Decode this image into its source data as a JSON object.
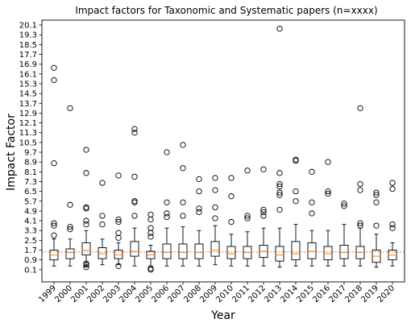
{
  "chart_data": {
    "type": "box",
    "title": "Impact factors for Taxonomic and Systematic papers (n=xxxx)",
    "xlabel": "Year",
    "ylabel": "Impact Factor",
    "ylim": [
      -0.9,
      20.5
    ],
    "yticks": [
      0.1,
      0.9,
      1.7,
      2.5,
      3.3,
      4.1,
      4.9,
      5.7,
      6.5,
      7.3,
      8.1,
      8.9,
      9.7,
      10.5,
      11.3,
      12.1,
      12.9,
      13.7,
      14.5,
      15.3,
      16.1,
      16.9,
      17.7,
      18.5,
      19.3,
      20.1
    ],
    "ytick_labels": [
      "0.1",
      "0.9",
      "1.7",
      "2.5",
      "3.3",
      "4.1",
      "4.9",
      "5.7",
      "6.5",
      "7.3",
      "8.1",
      "8.9",
      "9.7",
      "10.5",
      "11.3",
      "12.1",
      "12.9",
      "13.7",
      "14.5",
      "15.3",
      "16.1",
      "16.9",
      "17.7",
      "18.5",
      "19.3",
      "20.1"
    ],
    "reference_line": {
      "value": 1.55,
      "color": "#e8743b",
      "style": "dotted"
    },
    "median_color": "#ff7f0e",
    "categories": [
      "1999",
      "2000",
      "2001",
      "2002",
      "2003",
      "2004",
      "2005",
      "2006",
      "2007",
      "2008",
      "2009",
      "2010",
      "2011",
      "2012",
      "2013",
      "2014",
      "2015",
      "2016",
      "2017",
      "2018",
      "2019",
      "2020"
    ],
    "boxes": [
      {
        "label": "1999",
        "whislo": 0.4,
        "q1": 0.9,
        "med": 1.3,
        "q3": 1.7,
        "whishi": 2.6,
        "fliers": [
          2.9,
          3.7,
          3.9,
          8.8,
          15.6,
          16.6
        ]
      },
      {
        "label": "2000",
        "whislo": 0.4,
        "q1": 1.0,
        "med": 1.5,
        "q3": 1.8,
        "whishi": 2.6,
        "fliers": [
          3.4,
          3.6,
          5.4,
          13.3
        ]
      },
      {
        "label": "2001",
        "whislo": 0.4,
        "q1": 1.3,
        "med": 1.7,
        "q3": 2.3,
        "whishi": 3.3,
        "fliers": [
          0.3,
          0.5,
          0.6,
          3.8,
          4.1,
          5.1,
          5.2,
          8.0,
          9.9
        ]
      },
      {
        "label": "2002",
        "whislo": 0.5,
        "q1": 1.0,
        "med": 1.4,
        "q3": 1.9,
        "whishi": 2.6,
        "fliers": [
          3.8,
          4.5,
          7.2
        ]
      },
      {
        "label": "2003",
        "whislo": 0.5,
        "q1": 1.0,
        "med": 1.3,
        "q3": 1.7,
        "whishi": 2.3,
        "fliers": [
          0.4,
          2.7,
          3.1,
          4.0,
          4.2,
          7.8
        ]
      },
      {
        "label": "2004",
        "whislo": 0.4,
        "q1": 1.2,
        "med": 1.6,
        "q3": 2.4,
        "whishi": 3.5,
        "fliers": [
          4.5,
          5.6,
          5.7,
          7.7,
          11.3,
          11.6
        ]
      },
      {
        "label": "2005",
        "whislo": 0.4,
        "q1": 1.0,
        "med": 1.3,
        "q3": 1.6,
        "whishi": 2.1,
        "fliers": [
          0.1,
          0.2,
          2.8,
          3.1,
          3.5,
          4.2,
          4.6
        ]
      },
      {
        "label": "2006",
        "whislo": 0.4,
        "q1": 1.0,
        "med": 1.5,
        "q3": 2.2,
        "whishi": 3.5,
        "fliers": [
          4.4,
          4.7,
          5.6,
          9.7
        ]
      },
      {
        "label": "2007",
        "whislo": 0.4,
        "q1": 1.0,
        "med": 1.5,
        "q3": 2.2,
        "whishi": 3.6,
        "fliers": [
          4.5,
          5.6,
          8.4,
          10.3
        ]
      },
      {
        "label": "2008",
        "whislo": 0.4,
        "q1": 1.0,
        "med": 1.5,
        "q3": 2.2,
        "whishi": 3.3,
        "fliers": [
          4.8,
          5.1,
          6.5,
          7.5
        ]
      },
      {
        "label": "2009",
        "whislo": 0.5,
        "q1": 1.2,
        "med": 1.7,
        "q3": 2.4,
        "whishi": 3.7,
        "fliers": [
          4.3,
          5.2,
          6.6,
          7.6
        ]
      },
      {
        "label": "2010",
        "whislo": 0.4,
        "q1": 1.0,
        "med": 1.4,
        "q3": 2.0,
        "whishi": 3.0,
        "fliers": [
          4.0,
          6.1,
          7.6
        ]
      },
      {
        "label": "2011",
        "whislo": 0.4,
        "q1": 1.0,
        "med": 1.5,
        "q3": 2.0,
        "whishi": 3.2,
        "fliers": [
          4.3,
          4.5,
          8.2
        ]
      },
      {
        "label": "2012",
        "whislo": 0.4,
        "q1": 1.1,
        "med": 1.6,
        "q3": 2.1,
        "whishi": 3.5,
        "fliers": [
          4.5,
          4.8,
          5.0,
          8.3
        ]
      },
      {
        "label": "2013",
        "whislo": 0.3,
        "q1": 0.8,
        "med": 1.3,
        "q3": 2.0,
        "whishi": 3.5,
        "fliers": [
          5.0,
          6.2,
          6.4,
          6.9,
          7.1,
          8.0,
          19.8
        ]
      },
      {
        "label": "2014",
        "whislo": 0.4,
        "q1": 0.9,
        "med": 1.4,
        "q3": 2.4,
        "whishi": 3.8,
        "fliers": [
          5.7,
          6.5,
          9.0,
          9.1
        ]
      },
      {
        "label": "2015",
        "whislo": 0.4,
        "q1": 1.0,
        "med": 1.6,
        "q3": 2.3,
        "whishi": 3.3,
        "fliers": [
          4.7,
          5.6,
          8.1
        ]
      },
      {
        "label": "2016",
        "whislo": 0.4,
        "q1": 0.9,
        "med": 1.4,
        "q3": 2.0,
        "whishi": 3.3,
        "fliers": [
          6.3,
          6.5,
          8.9
        ]
      },
      {
        "label": "2017",
        "whislo": 0.4,
        "q1": 1.0,
        "med": 1.5,
        "q3": 2.1,
        "whishi": 3.8,
        "fliers": [
          5.3,
          5.5
        ]
      },
      {
        "label": "2018",
        "whislo": 0.4,
        "q1": 1.0,
        "med": 1.5,
        "q3": 2.0,
        "whishi": 3.5,
        "fliers": [
          3.7,
          3.9,
          6.6,
          7.1,
          13.3
        ]
      },
      {
        "label": "2019",
        "whislo": 0.3,
        "q1": 0.7,
        "med": 1.2,
        "q3": 1.7,
        "whishi": 3.0,
        "fliers": [
          3.7,
          5.6,
          6.2,
          6.4
        ]
      },
      {
        "label": "2020",
        "whislo": 0.4,
        "q1": 0.9,
        "med": 1.3,
        "q3": 1.7,
        "whishi": 2.3,
        "fliers": [
          3.5,
          3.8,
          6.7,
          7.2
        ]
      }
    ]
  }
}
